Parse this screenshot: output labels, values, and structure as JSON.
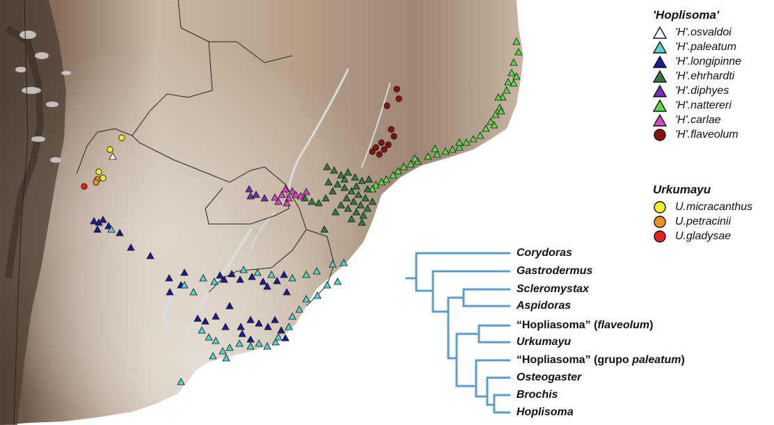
{
  "legend_hoplisoma": {
    "title": "'Hoplisoma'",
    "items": [
      {
        "label": "'H'.osvaldoi",
        "color": "#ffffff",
        "shape": "triangle"
      },
      {
        "label": "'H'.paleatum",
        "color": "#55d4d0",
        "shape": "triangle"
      },
      {
        "label": "'H'.longipinne",
        "color": "#1a1aa0",
        "shape": "triangle"
      },
      {
        "label": "'H'.ehrhardti",
        "color": "#2e7d46",
        "shape": "triangle"
      },
      {
        "label": "'H'.diphyes",
        "color": "#7a2cb8",
        "shape": "triangle"
      },
      {
        "label": "'H'.nattereri",
        "color": "#55dd44",
        "shape": "triangle"
      },
      {
        "label": "'H'.carlae",
        "color": "#dd44c8",
        "shape": "triangle"
      },
      {
        "label": "'H'.flaveolum",
        "color": "#8b1010",
        "shape": "circle"
      }
    ]
  },
  "legend_urkumayu": {
    "title": "Urkumayu",
    "items": [
      {
        "label": "U.micracanthus",
        "color": "#f5ee2a",
        "shape": "circle"
      },
      {
        "label": "U.petracinii",
        "color": "#f0901e",
        "shape": "circle"
      },
      {
        "label": "U.gladysae",
        "color": "#e82020",
        "shape": "circle"
      }
    ]
  },
  "tree": {
    "line_color": "#5a9ec8",
    "taxa": [
      {
        "name": "Corydoras"
      },
      {
        "name": "Gastrodermus"
      },
      {
        "name": "Scleromystax"
      },
      {
        "name": "Aspidoras"
      },
      {
        "pre": "“Hopliasoma” (",
        "ital": "flaveolum",
        "post": ")"
      },
      {
        "name": "Urkumayu"
      },
      {
        "pre": "“Hopliasoma” (grupo ",
        "ital": "paleatum",
        "post": ")"
      },
      {
        "name": "Osteogaster"
      },
      {
        "name": "Brochis"
      },
      {
        "name": "Hoplisoma"
      }
    ]
  }
}
